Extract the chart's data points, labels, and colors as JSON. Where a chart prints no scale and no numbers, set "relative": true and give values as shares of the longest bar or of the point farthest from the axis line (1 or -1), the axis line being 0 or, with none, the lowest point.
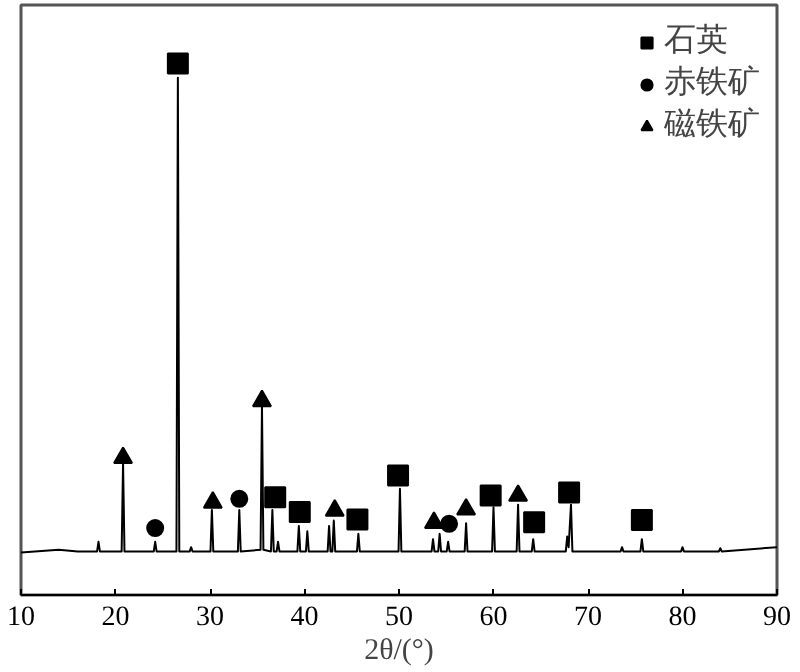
{
  "chart_data": {
    "type": "line",
    "xlabel": "2θ/(°)",
    "relative": true,
    "xlim": [
      10,
      90
    ],
    "xticks": [
      10,
      20,
      30,
      40,
      50,
      60,
      70,
      80,
      90
    ],
    "legend": "top right",
    "grid": false,
    "tick_labels": "x",
    "x": [
      10,
      14,
      16,
      18.05,
      18.2,
      18.35,
      20.65,
      20.8,
      20.95,
      24.05,
      24.2,
      24.35,
      26.45,
      26.6,
      26.75,
      27.85,
      28.0,
      28.15,
      30.05,
      30.2,
      30.35,
      32.95,
      33.1,
      33.25,
      35.35,
      35.5,
      35.65,
      36.45,
      36.6,
      36.75,
      37.05,
      37.2,
      37.35,
      39.25,
      39.4,
      39.55,
      40.15,
      40.3,
      40.45,
      42.45,
      42.6,
      42.75,
      42.95,
      43.1,
      43.25,
      45.55,
      45.7,
      45.85,
      49.95,
      50.1,
      50.25,
      53.45,
      53.6,
      53.75,
      54.15,
      54.3,
      54.45,
      55.05,
      55.2,
      55.35,
      56.95,
      57.1,
      57.25,
      59.85,
      60.0,
      60.15,
      62.45,
      62.6,
      62.75,
      64.05,
      64.2,
      64.35,
      67.65,
      67.8,
      67.95,
      68.2,
      68.35,
      73.45,
      73.6,
      73.75,
      75.55,
      75.7,
      75.85,
      79.85,
      80.0,
      80.15,
      83.85,
      84.0,
      84.15,
      90
    ],
    "series": [
      {
        "color": "#000000",
        "marker": "none",
        "values": [
          0.08,
          0.085,
          0.082,
          0.082,
          0.1,
          0.082,
          0.082,
          0.248,
          0.082,
          0.082,
          0.1,
          0.082,
          0.082,
          0.973,
          0.082,
          0.082,
          0.09,
          0.082,
          0.082,
          0.16,
          0.082,
          0.082,
          0.16,
          0.082,
          0.085,
          0.356,
          0.085,
          0.082,
          0.16,
          0.082,
          0.082,
          0.1,
          0.082,
          0.082,
          0.13,
          0.082,
          0.082,
          0.12,
          0.082,
          0.082,
          0.13,
          0.082,
          0.082,
          0.14,
          0.082,
          0.082,
          0.115,
          0.082,
          0.082,
          0.2,
          0.082,
          0.082,
          0.105,
          0.082,
          0.082,
          0.115,
          0.082,
          0.082,
          0.1,
          0.082,
          0.082,
          0.135,
          0.082,
          0.082,
          0.165,
          0.082,
          0.082,
          0.17,
          0.082,
          0.082,
          0.105,
          0.082,
          0.082,
          0.11,
          0.09,
          0.17,
          0.082,
          0.082,
          0.09,
          0.082,
          0.082,
          0.105,
          0.082,
          0.082,
          0.09,
          0.082,
          0.082,
          0.088,
          0.082,
          0.09
        ]
      },
      {
        "name": "石英",
        "type": "scatter",
        "marker": "square",
        "color": "#000000",
        "x": [
          26.6,
          36.9,
          39.5,
          45.6,
          49.9,
          59.7,
          64.3,
          68.0,
          75.7
        ],
        "values": [
          1.0,
          0.184,
          0.156,
          0.142,
          0.225,
          0.187,
          0.137,
          0.193,
          0.141
        ]
      },
      {
        "name": "赤铁矿",
        "type": "scatter",
        "marker": "circle",
        "color": "#000000",
        "x": [
          24.2,
          33.1,
          55.3
        ],
        "values": [
          0.126,
          0.181,
          0.134
        ]
      },
      {
        "name": "磁铁矿",
        "type": "scatter",
        "marker": "triangle",
        "color": "#000000",
        "x": [
          20.8,
          30.3,
          35.5,
          43.2,
          53.7,
          57.1,
          62.6
        ],
        "values": [
          0.258,
          0.174,
          0.365,
          0.159,
          0.136,
          0.161,
          0.187
        ]
      }
    ]
  }
}
